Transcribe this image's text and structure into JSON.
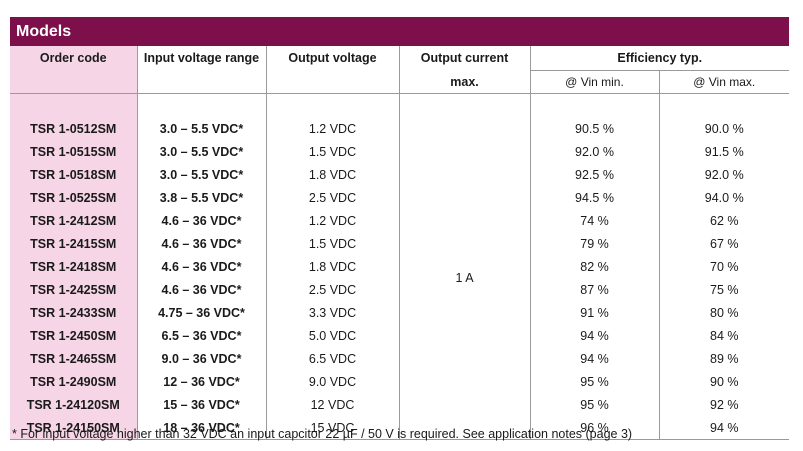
{
  "title": "Models",
  "headers": {
    "order_code": "Order code",
    "input_voltage": "Input voltage range",
    "output_voltage": "Output voltage",
    "output_current_line1": "Output current",
    "output_current_line2": "max.",
    "efficiency": "Efficiency typ.",
    "vin_min": "@ Vin min.",
    "vin_max": "@ Vin max."
  },
  "output_current_value": "1 A",
  "rows": [
    {
      "code": "TSR 1-0512SM",
      "vin": "3.0 – 5.5 VDC*",
      "vout": "1.2 VDC",
      "eff_min": "90.5 %",
      "eff_max": "90.0 %"
    },
    {
      "code": "TSR 1-0515SM",
      "vin": "3.0 – 5.5 VDC*",
      "vout": "1.5 VDC",
      "eff_min": "92.0 %",
      "eff_max": "91.5 %"
    },
    {
      "code": "TSR 1-0518SM",
      "vin": "3.0 – 5.5 VDC*",
      "vout": "1.8 VDC",
      "eff_min": "92.5 %",
      "eff_max": "92.0 %"
    },
    {
      "code": "TSR 1-0525SM",
      "vin": "3.8 – 5.5 VDC*",
      "vout": "2.5 VDC",
      "eff_min": "94.5 %",
      "eff_max": "94.0 %"
    },
    {
      "code": "TSR 1-2412SM",
      "vin": "4.6 – 36 VDC*",
      "vout": "1.2 VDC",
      "eff_min": "74 %",
      "eff_max": "62 %"
    },
    {
      "code": "TSR 1-2415SM",
      "vin": "4.6 – 36 VDC*",
      "vout": "1.5 VDC",
      "eff_min": "79 %",
      "eff_max": "67 %"
    },
    {
      "code": "TSR 1-2418SM",
      "vin": "4.6 – 36 VDC*",
      "vout": "1.8 VDC",
      "eff_min": "82 %",
      "eff_max": "70 %"
    },
    {
      "code": "TSR 1-2425SM",
      "vin": "4.6 – 36 VDC*",
      "vout": "2.5 VDC",
      "eff_min": "87 %",
      "eff_max": "75 %"
    },
    {
      "code": "TSR 1-2433SM",
      "vin": "4.75 – 36 VDC*",
      "vout": "3.3 VDC",
      "eff_min": "91 %",
      "eff_max": "80 %"
    },
    {
      "code": "TSR 1-2450SM",
      "vin": "6.5 – 36 VDC*",
      "vout": "5.0 VDC",
      "eff_min": "94 %",
      "eff_max": "84 %"
    },
    {
      "code": "TSR 1-2465SM",
      "vin": "9.0 – 36 VDC*",
      "vout": "6.5 VDC",
      "eff_min": "94 %",
      "eff_max": "89 %"
    },
    {
      "code": "TSR 1-2490SM",
      "vin": "12 – 36 VDC*",
      "vout": "9.0 VDC",
      "eff_min": "95 %",
      "eff_max": "90 %"
    },
    {
      "code": "TSR 1-24120SM",
      "vin": "15 – 36 VDC*",
      "vout": "12 VDC",
      "eff_min": "95 %",
      "eff_max": "92 %"
    },
    {
      "code": "TSR 1-24150SM",
      "vin": "18 – 36 VDC*",
      "vout": "15 VDC",
      "eff_min": "96 %",
      "eff_max": "94 %"
    }
  ],
  "footnote": "* For input voltage higher than 32 VDC an input capcitor 22 µF / 50 V is required. See application notes (page 3)",
  "colors": {
    "title_bar": "#7d0f4a",
    "code_column": "#f6d6e6"
  }
}
